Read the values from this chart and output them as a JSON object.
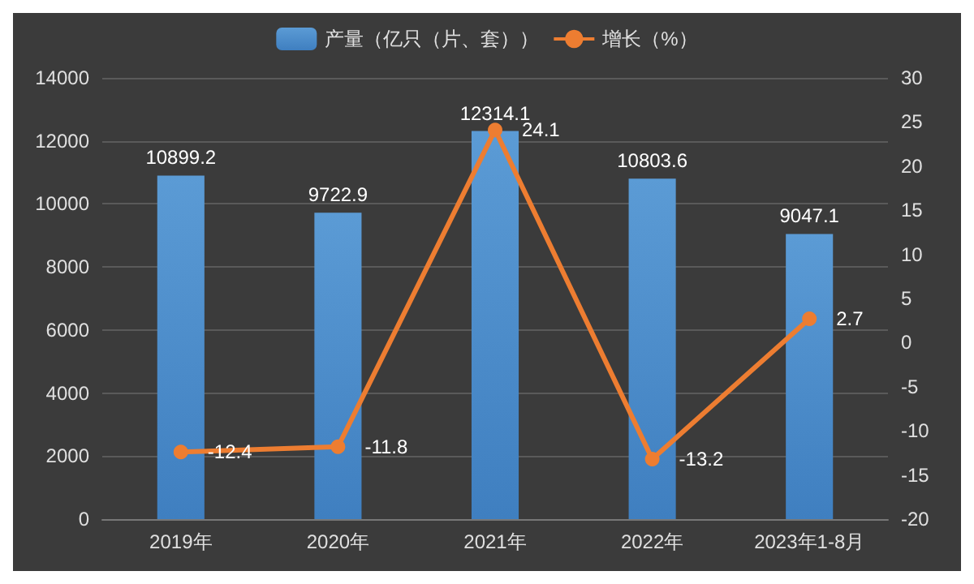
{
  "chart_data": {
    "type": "bar",
    "categories": [
      "2019年",
      "2020年",
      "2021年",
      "2022年",
      "2023年1-8月"
    ],
    "series": [
      {
        "name": "产量（亿只（片、套））",
        "color": "#5b9bd5",
        "values": [
          10899.2,
          9722.9,
          12314.1,
          10803.6,
          9047.1
        ]
      },
      {
        "name": "增长（%）",
        "type": "line",
        "axis": "y2",
        "color": "#ed7d31",
        "values": [
          -12.4,
          -11.8,
          24.1,
          -13.2,
          2.7
        ]
      }
    ],
    "ylim": [
      0,
      14000
    ],
    "yticks": [
      0,
      2000,
      4000,
      6000,
      8000,
      10000,
      12000,
      14000
    ],
    "y2lim": [
      -20,
      30
    ],
    "y2ticks": [
      -20,
      -15,
      -10,
      -5,
      0,
      5,
      10,
      15,
      20,
      25,
      30
    ],
    "data_labels": true,
    "grid": "y",
    "legend": "top",
    "marker": "circle"
  }
}
